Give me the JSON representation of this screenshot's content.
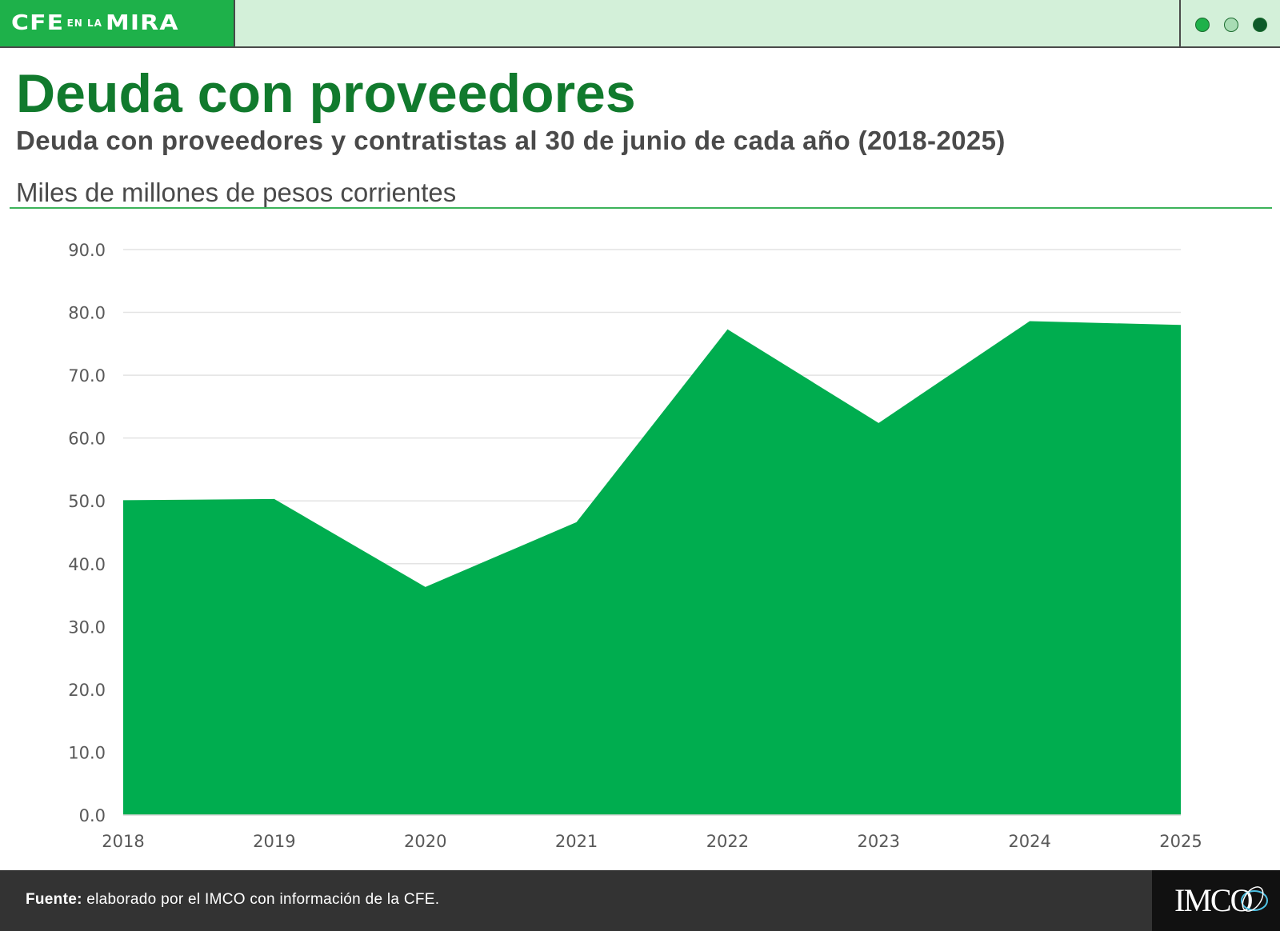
{
  "header": {
    "brand_main": "CFE",
    "brand_small": "EN LA",
    "brand_end": "MIRA",
    "dots": [
      {
        "icon": "filled-dot",
        "color": "#1eb14a"
      },
      {
        "icon": "light-dot",
        "color": "#a8dcb4"
      },
      {
        "icon": "dark-dot",
        "color": "#0e5a2a"
      }
    ]
  },
  "title": "Deuda con proveedores",
  "subtitle": "Deuda con proveedores y contratistas al 30 de junio de cada año (2018-2025)",
  "units": "Miles de millones de pesos corrientes",
  "chart_data": {
    "type": "area",
    "x": [
      "2018",
      "2019",
      "2020",
      "2021",
      "2022",
      "2023",
      "2024",
      "2025"
    ],
    "series": [
      {
        "color": "#00ad4f",
        "values": [
          50.1,
          50.3,
          36.3,
          46.6,
          77.3,
          62.4,
          78.6,
          78.0
        ]
      }
    ],
    "ylim": [
      0,
      90
    ],
    "yticks": [
      "0.0",
      "10.0",
      "20.0",
      "30.0",
      "40.0",
      "50.0",
      "60.0",
      "70.0",
      "80.0",
      "90.0"
    ],
    "grid": true,
    "legend": "none"
  },
  "footer": {
    "source_label": "Fuente:",
    "source_text": " elaborado por el IMCO con información de la CFE.",
    "logo": "IMCO"
  }
}
